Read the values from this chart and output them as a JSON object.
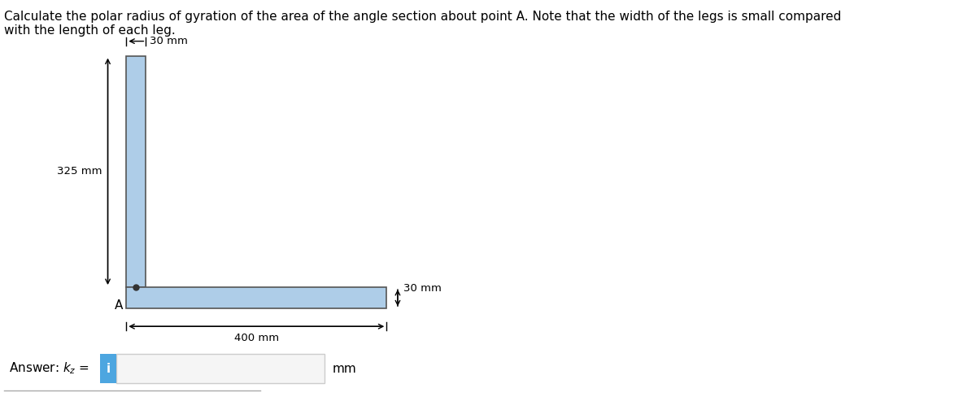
{
  "title_text": "Calculate the polar radius of gyration of the area of the angle section about point A. Note that the width of the legs is small compared\nwith the length of each leg.",
  "title_fontsize": 11,
  "answer_label": "Answer: k₂ =",
  "answer_unit": "mm",
  "dim_325": "325 mm",
  "dim_30_top": "30 mm",
  "dim_30_right": "30 mm",
  "dim_400": "400 mm",
  "point_label": "A",
  "shape_color": "#aecde8",
  "shape_edge_color": "#555555",
  "answer_box_color": "#4da6e0",
  "answer_box_text_color": "white",
  "input_box_color": "#f5f5f5",
  "input_box_edge": "#cccccc",
  "bg_color": "#ffffff"
}
